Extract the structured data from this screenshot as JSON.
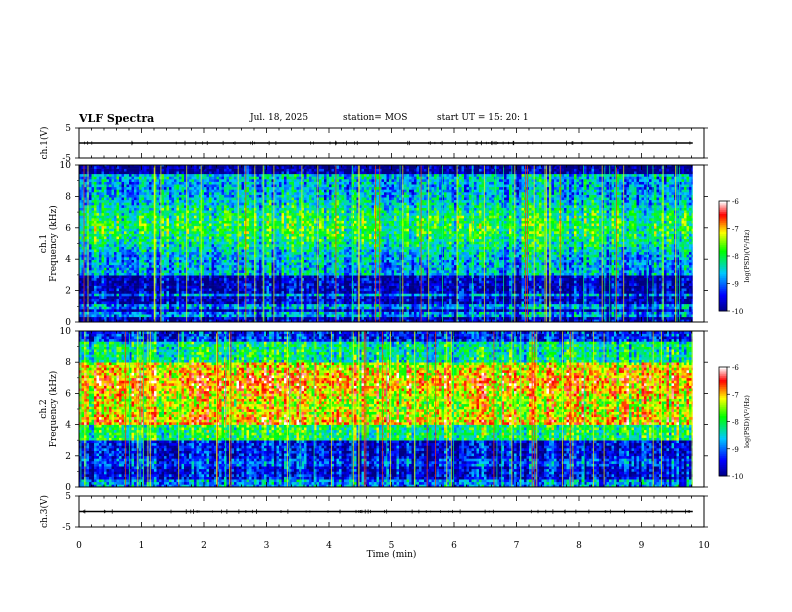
{
  "header": {
    "title": "VLF Spectra",
    "date": "Jul. 18, 2025",
    "station": "station= MOS",
    "start": "start  UT =   15: 20: 1"
  },
  "chart_data": {
    "type": "heatmap",
    "title": "VLF Spectra",
    "xlabel": "Time  (min)",
    "xlim": [
      0,
      10
    ],
    "x_ticks": [
      "0",
      "1",
      "2",
      "3",
      "4",
      "5",
      "6",
      "7",
      "8",
      "9",
      "10"
    ],
    "panels": [
      {
        "name": "ch.1 waveform",
        "kind": "line",
        "ylabel": "ch.1(V)",
        "ylim": [
          -5,
          5
        ],
        "y_ticks": [
          "5",
          "-5"
        ],
        "baseline_value": 0,
        "data_extent_min": 9.82
      },
      {
        "name": "ch.1 spectrogram",
        "kind": "spectrogram",
        "ylabel": "ch.1\nFrequency (kHz)",
        "ylim": [
          0,
          10
        ],
        "y_ticks": [
          "0",
          "2",
          "4",
          "6",
          "8",
          "10"
        ],
        "band_description": "broadband 3-10 kHz emission (green/cyan), quiet below 3 kHz, narrow lines near 0.5, 1 and 1.7 kHz",
        "colorbar": {
          "label": "log(PSD)(V²/Hz)",
          "range": [
            -10,
            -6
          ],
          "ticks": [
            "-6",
            "-7",
            "-8",
            "-9",
            "-10"
          ],
          "colors": [
            "#000080",
            "#0000ff",
            "#00c8ff",
            "#00ff00",
            "#ffff00",
            "#ff0000",
            "#ffffff"
          ]
        }
      },
      {
        "name": "ch.2 spectrogram",
        "kind": "spectrogram",
        "ylabel": "ch.2\nFrequency (kHz)",
        "ylim": [
          0,
          10
        ],
        "y_ticks": [
          "0",
          "2",
          "4",
          "6",
          "8",
          "10"
        ],
        "band_description": "intense band 4-8 kHz (yellow/red), green 3-4 and 8-9 kHz, blue near 10 kHz and below 3 kHz",
        "colorbar": {
          "label": "log(PSD)(V²/Hz)",
          "range": [
            -10,
            -6
          ],
          "ticks": [
            "-6",
            "-7",
            "-8",
            "-9",
            "-10"
          ],
          "colors": [
            "#000080",
            "#0000ff",
            "#00c8ff",
            "#00ff00",
            "#ffff00",
            "#ff0000",
            "#ffffff"
          ]
        }
      },
      {
        "name": "ch.3 waveform",
        "kind": "line",
        "ylabel": "ch.3(V)",
        "ylim": [
          -5,
          5
        ],
        "y_ticks": [
          "5",
          "-5"
        ],
        "baseline_value": 0,
        "data_extent_min": 9.82
      }
    ]
  }
}
